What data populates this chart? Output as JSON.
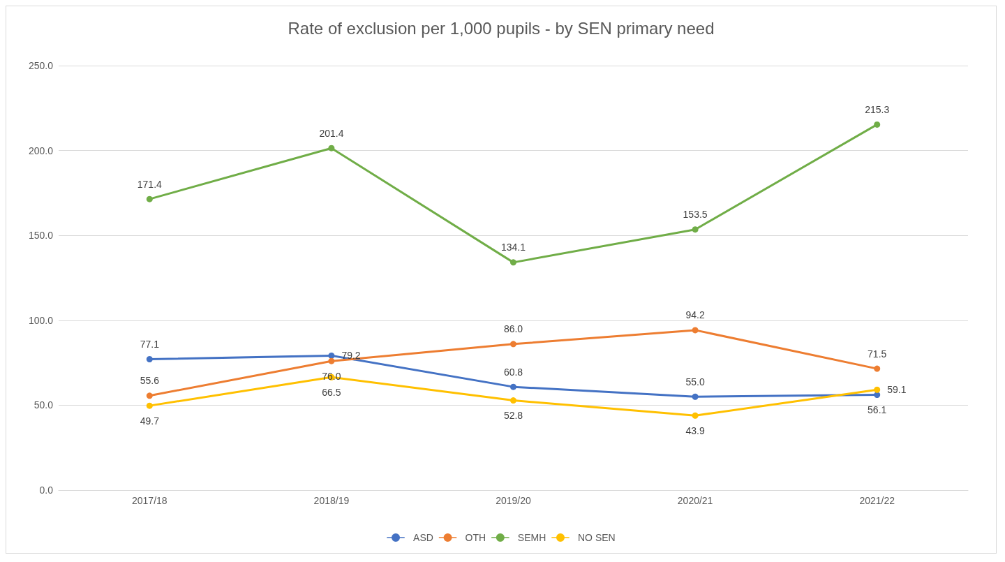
{
  "chart_data": {
    "type": "line",
    "title": "Rate of exclusion per 1,000 pupils - by SEN primary need",
    "categories": [
      "2017/18",
      "2018/19",
      "2019/20",
      "2020/21",
      "2021/22"
    ],
    "series": [
      {
        "name": "ASD",
        "color": "#4472c4",
        "values": [
          77.1,
          79.2,
          60.8,
          55,
          56.1
        ],
        "value_labels": [
          "77.1",
          "79.2",
          "60.8",
          "55.0",
          "56.1"
        ]
      },
      {
        "name": "OTH",
        "color": "#ed7d31",
        "values": [
          55.6,
          76,
          86,
          94.2,
          71.5
        ],
        "value_labels": [
          "55.6",
          "76.0",
          "86.0",
          "94.2",
          "71.5"
        ]
      },
      {
        "name": "SEMH",
        "color": "#70ad47",
        "values": [
          171.4,
          201.4,
          134.1,
          153.5,
          215.3
        ],
        "value_labels": [
          "171.4",
          "201.4",
          "134.1",
          "153.5",
          "215.3"
        ]
      },
      {
        "name": "NO SEN",
        "color": "#ffc000",
        "values": [
          49.7,
          66.5,
          52.8,
          43.9,
          59.1
        ],
        "value_labels": [
          "49.7",
          "66.5",
          "52.8",
          "43.9",
          "59.1"
        ]
      }
    ],
    "ylim": [
      0,
      250
    ],
    "yticks": [
      {
        "value": 0,
        "label": "0.0"
      },
      {
        "value": 50,
        "label": "50.0"
      },
      {
        "value": 100,
        "label": "100.0"
      },
      {
        "value": 150,
        "label": "150.0"
      },
      {
        "value": 200,
        "label": "200.0"
      },
      {
        "value": 250,
        "label": "250.0"
      }
    ],
    "grid": "y",
    "legend": "bottom",
    "marker": "circle",
    "line_style": "solid"
  }
}
